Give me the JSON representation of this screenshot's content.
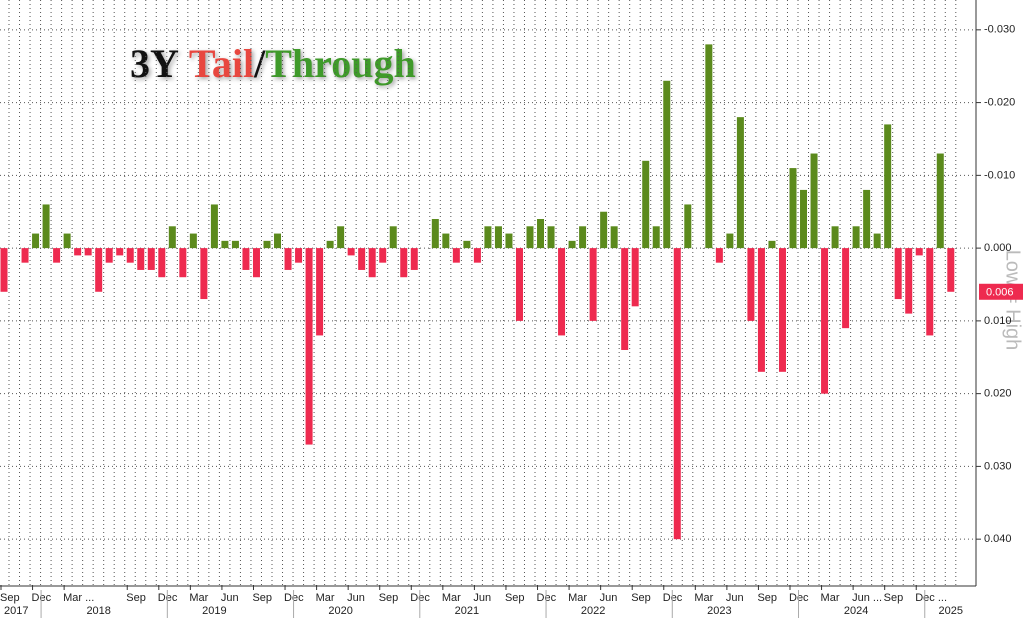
{
  "chart_data": {
    "type": "bar",
    "title_parts": [
      {
        "text": "3Y",
        "color": "#111111"
      },
      {
        "text": "Tail",
        "color": "#e8473f"
      },
      {
        "text": "/",
        "color": "#111111"
      },
      {
        "text": "Through",
        "color": "#3f9a2a"
      }
    ],
    "annotation": "Low = High",
    "positive_color": "#ee2a4f",
    "negative_color": "#5b8a1c",
    "grid": true,
    "inverted_y": true,
    "ylim": [
      0.0463,
      -0.0341
    ],
    "yticks": [
      {
        "value": -0.03,
        "label": "-0.030"
      },
      {
        "value": -0.02,
        "label": "-0.020"
      },
      {
        "value": -0.01,
        "label": "-0.010"
      },
      {
        "value": 0,
        "label": "0.000"
      },
      {
        "value": 0.01,
        "label": "0.010"
      },
      {
        "value": 0.02,
        "label": "0.020"
      },
      {
        "value": 0.03,
        "label": "0.030"
      },
      {
        "value": 0.04,
        "label": "0.040"
      }
    ],
    "categories": [
      "Sep",
      null,
      null,
      "Dec",
      null,
      null,
      "Mar ...",
      null,
      null,
      null,
      null,
      null,
      "Sep",
      null,
      null,
      "Dec",
      null,
      null,
      "Mar",
      null,
      null,
      "Jun",
      null,
      null,
      "Sep",
      null,
      null,
      "Dec",
      null,
      null,
      "Mar",
      null,
      null,
      "Jun",
      null,
      null,
      "Sep",
      null,
      null,
      "Dec",
      null,
      null,
      "Mar",
      null,
      null,
      "Jun",
      null,
      null,
      "Sep",
      null,
      null,
      "Dec",
      null,
      null,
      "Mar",
      null,
      null,
      "Jun",
      null,
      null,
      "Sep",
      null,
      null,
      "Dec",
      null,
      null,
      "Mar",
      null,
      null,
      "Jun",
      null,
      null,
      "Sep",
      null,
      null,
      "Dec",
      null,
      null,
      "Mar",
      null,
      null,
      "Jun ...",
      null,
      null,
      "Sep",
      null,
      null,
      "Dec ...",
      null,
      null,
      null
    ],
    "category_years": [
      "2017",
      null,
      null,
      null,
      null,
      null,
      null,
      null,
      null,
      "2018",
      null,
      null,
      null,
      null,
      null,
      null,
      null,
      null,
      null,
      null,
      "2019",
      null,
      null,
      null,
      null,
      null,
      null,
      null,
      null,
      null,
      null,
      null,
      "2020",
      null,
      null,
      null,
      null,
      null,
      null,
      null,
      null,
      null,
      null,
      null,
      "2021",
      null,
      null,
      null,
      null,
      null,
      null,
      null,
      null,
      null,
      null,
      null,
      "2022",
      null,
      null,
      null,
      null,
      null,
      null,
      null,
      null,
      null,
      null,
      null,
      "2023",
      null,
      null,
      null,
      null,
      null,
      null,
      null,
      null,
      null,
      null,
      null,
      null,
      "2024",
      null,
      null,
      null,
      null,
      null,
      null,
      null,
      null,
      "2025"
    ],
    "values": [
      0.006,
      0,
      0.002,
      -0.002,
      -0.006,
      0.002,
      -0.002,
      0.001,
      0.001,
      0.006,
      0.002,
      0.001,
      0.002,
      0.003,
      0.003,
      0.004,
      -0.003,
      0.004,
      -0.002,
      0.007,
      -0.006,
      -0.001,
      -0.001,
      0.003,
      0.004,
      -0.001,
      -0.002,
      0.003,
      0.002,
      0.027,
      0.012,
      -0.001,
      -0.003,
      0.001,
      0.003,
      0.004,
      0.002,
      -0.003,
      0.004,
      0.003,
      0,
      -0.004,
      -0.002,
      0.002,
      -0.001,
      0.002,
      -0.003,
      -0.003,
      -0.002,
      0.01,
      -0.003,
      -0.004,
      -0.003,
      0.012,
      -0.001,
      -0.003,
      0.01,
      -0.005,
      -0.003,
      0.014,
      0.008,
      -0.012,
      -0.003,
      -0.023,
      0.04,
      -0.006,
      0,
      -0.028,
      0.002,
      -0.002,
      -0.018,
      0.01,
      0.017,
      -0.001,
      0.017,
      -0.011,
      -0.008,
      -0.013,
      0.02,
      -0.003,
      0.011,
      -0.003,
      -0.008,
      -0.002,
      -0.017,
      0.007,
      0.009,
      0.001,
      0.012,
      -0.013,
      0.006
    ]
  }
}
